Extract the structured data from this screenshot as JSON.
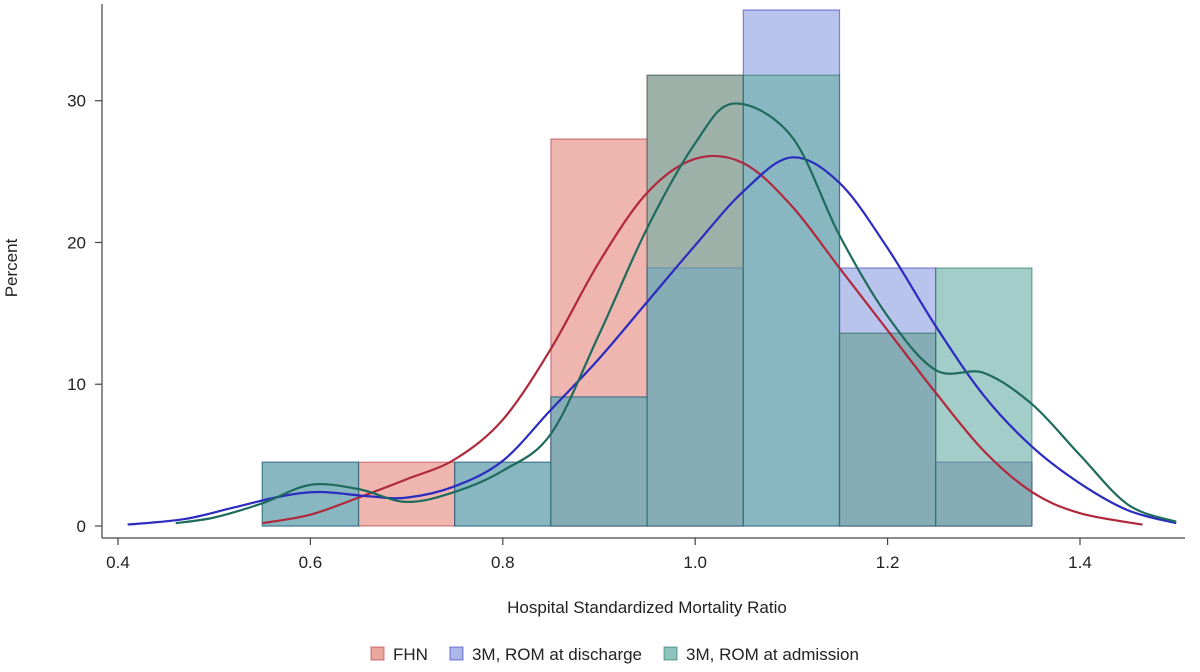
{
  "chart_data": {
    "type": "histogram",
    "xlabel": "Hospital Standardized Mortality Ratio",
    "ylabel": "Percent",
    "xlim": [
      0.4,
      1.5
    ],
    "ylim": [
      0,
      36.5
    ],
    "xticks": [
      0.4,
      0.6,
      0.8,
      1.0,
      1.2,
      1.4
    ],
    "xtick_labels": [
      "0.4",
      "0.6",
      "0.8",
      "1.0",
      "1.2",
      "1.4"
    ],
    "yticks": [
      0,
      10,
      20,
      30
    ],
    "ytick_labels": [
      "0",
      "10",
      "20",
      "30"
    ],
    "bin_edges": [
      0.55,
      0.65,
      0.75,
      0.85,
      0.95,
      1.05,
      1.15,
      1.25,
      1.35
    ],
    "series": [
      {
        "name": "FHN",
        "color": "#e4897d",
        "curve_color": "#b0283c",
        "values": [
          0,
          4.5,
          0,
          27.3,
          31.8,
          0,
          13.6,
          4.5
        ],
        "density": [
          [
            0.55,
            0.2
          ],
          [
            0.6,
            0.8
          ],
          [
            0.65,
            2.0
          ],
          [
            0.7,
            3.3
          ],
          [
            0.75,
            4.7
          ],
          [
            0.8,
            7.5
          ],
          [
            0.85,
            12.5
          ],
          [
            0.9,
            18.6
          ],
          [
            0.95,
            23.5
          ],
          [
            1.0,
            25.9
          ],
          [
            1.05,
            25.6
          ],
          [
            1.1,
            22.6
          ],
          [
            1.15,
            18.2
          ],
          [
            1.2,
            13.8
          ],
          [
            1.25,
            9.4
          ],
          [
            1.3,
            5.3
          ],
          [
            1.35,
            2.4
          ],
          [
            1.4,
            0.9
          ],
          [
            1.465,
            0.1
          ]
        ]
      },
      {
        "name": "3M, ROM at discharge",
        "color": "#8e9fe0",
        "curve_color": "#2b2bc0",
        "values": [
          4.5,
          0,
          4.5,
          9.1,
          18.2,
          36.4,
          18.2,
          4.5
        ],
        "density": [
          [
            0.41,
            0.1
          ],
          [
            0.47,
            0.5
          ],
          [
            0.52,
            1.3
          ],
          [
            0.57,
            2.1
          ],
          [
            0.61,
            2.4
          ],
          [
            0.66,
            2.1
          ],
          [
            0.7,
            2.0
          ],
          [
            0.75,
            2.8
          ],
          [
            0.8,
            4.6
          ],
          [
            0.85,
            8.2
          ],
          [
            0.9,
            11.8
          ],
          [
            0.95,
            15.8
          ],
          [
            1.0,
            19.8
          ],
          [
            1.05,
            23.6
          ],
          [
            1.1,
            26.0
          ],
          [
            1.15,
            24.2
          ],
          [
            1.2,
            19.6
          ],
          [
            1.25,
            14.1
          ],
          [
            1.3,
            9.2
          ],
          [
            1.35,
            5.6
          ],
          [
            1.4,
            3.0
          ],
          [
            1.45,
            1.1
          ],
          [
            1.5,
            0.2
          ]
        ]
      },
      {
        "name": "3M, ROM at admission",
        "color": "#6aaea6",
        "curve_color": "#1e6b5e",
        "values": [
          4.5,
          0,
          4.5,
          9.1,
          31.8,
          31.8,
          13.6,
          18.2
        ],
        "density": [
          [
            0.46,
            0.2
          ],
          [
            0.5,
            0.6
          ],
          [
            0.55,
            1.6
          ],
          [
            0.6,
            2.9
          ],
          [
            0.65,
            2.6
          ],
          [
            0.7,
            1.7
          ],
          [
            0.75,
            2.4
          ],
          [
            0.8,
            3.9
          ],
          [
            0.85,
            6.5
          ],
          [
            0.9,
            13.5
          ],
          [
            0.95,
            21.0
          ],
          [
            1.0,
            27.0
          ],
          [
            1.04,
            29.8
          ],
          [
            1.1,
            27.5
          ],
          [
            1.15,
            20.5
          ],
          [
            1.2,
            14.8
          ],
          [
            1.25,
            11.0
          ],
          [
            1.3,
            10.8
          ],
          [
            1.35,
            8.6
          ],
          [
            1.4,
            5.0
          ],
          [
            1.45,
            1.5
          ],
          [
            1.5,
            0.3
          ]
        ]
      }
    ],
    "legend_position": "bottom-center"
  }
}
